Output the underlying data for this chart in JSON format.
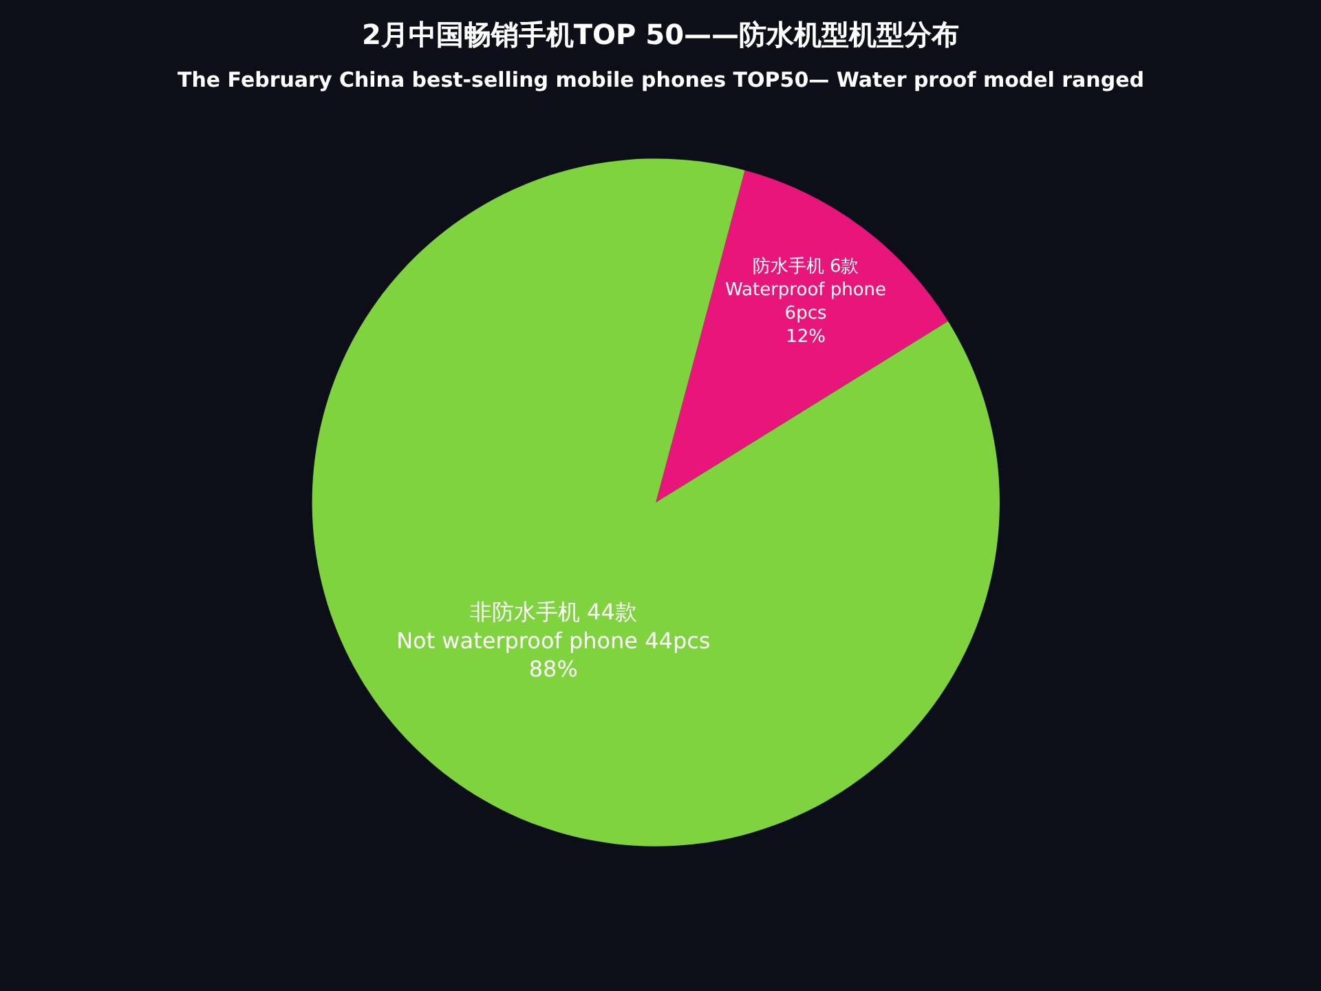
{
  "chart_data": {
    "type": "pie",
    "title": "2月中国畅销手机TOP 50——防水机型机型分布",
    "subtitle": "The February China best-selling mobile phones TOP50— Water proof model ranged",
    "categories": [
      "防水手机 6款\nWaterproof phone\n6pcs\n12%",
      "非防水手机 44款\nNot waterproof phone 44pcs\n88%"
    ],
    "values": [
      6,
      44
    ],
    "colors": [
      "#e8157a",
      "#7fd33e"
    ]
  }
}
